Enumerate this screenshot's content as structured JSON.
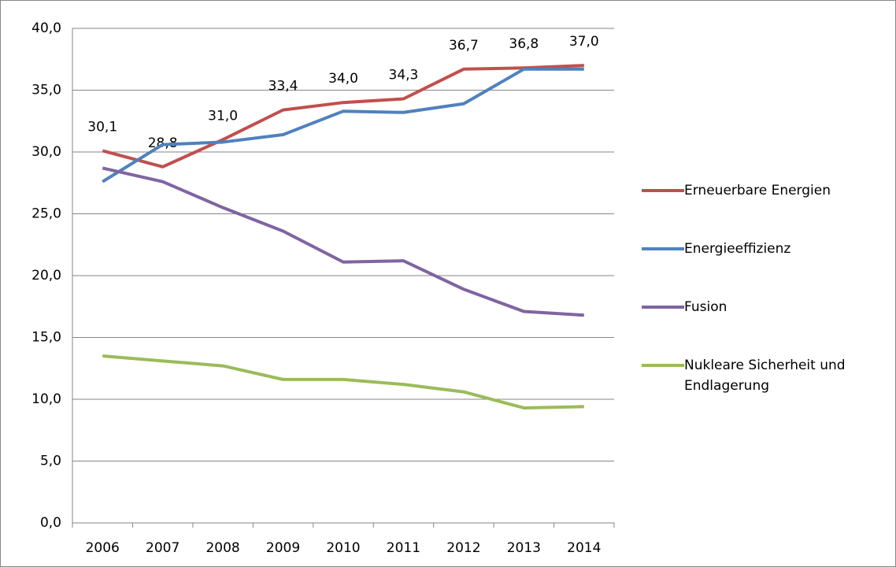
{
  "chart_data": {
    "type": "line",
    "categories": [
      "2006",
      "2007",
      "2008",
      "2009",
      "2010",
      "2011",
      "2012",
      "2013",
      "2014"
    ],
    "series": [
      {
        "name": "Erneuerbare Energien",
        "color": "#c0504d",
        "values": [
          30.1,
          28.8,
          31.0,
          33.4,
          34.0,
          34.3,
          36.7,
          36.8,
          37.0
        ],
        "value_labels": [
          "30,1",
          "28,8",
          "31,0",
          "33,4",
          "34,0",
          "34,3",
          "36,7",
          "36,8",
          "37,0"
        ]
      },
      {
        "name": "Energieeffizienz",
        "color": "#4f81bd",
        "values": [
          27.6,
          30.6,
          30.8,
          31.4,
          33.3,
          33.2,
          33.9,
          36.7,
          36.7
        ]
      },
      {
        "name": "Fusion",
        "color": "#8064a2",
        "values": [
          28.7,
          27.6,
          25.5,
          23.6,
          21.1,
          21.2,
          18.9,
          17.1,
          16.8
        ]
      },
      {
        "name": "Nukleare Sicherheit und Endlagerung",
        "color": "#9bbb59",
        "values": [
          13.5,
          13.1,
          12.7,
          11.6,
          11.6,
          11.2,
          10.6,
          9.3,
          9.4
        ]
      }
    ],
    "ylim": [
      0,
      40
    ],
    "yticks": [
      {
        "value": 0,
        "label": "0,0"
      },
      {
        "value": 5,
        "label": "5,0"
      },
      {
        "value": 10,
        "label": "10,0"
      },
      {
        "value": 15,
        "label": "15,0"
      },
      {
        "value": 20,
        "label": "20,0"
      },
      {
        "value": 25,
        "label": "25,0"
      },
      {
        "value": 30,
        "label": "30,0"
      },
      {
        "value": 35,
        "label": "35,0"
      },
      {
        "value": 40,
        "label": "40,0"
      }
    ],
    "grid": true
  }
}
